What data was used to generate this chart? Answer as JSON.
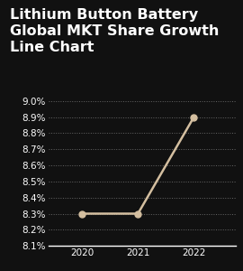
{
  "title_line1": "Lithium Button Battery",
  "title_line2": "Global MKT Share Growth",
  "title_line3": "Line Chart",
  "x": [
    2020,
    2021,
    2022
  ],
  "y": [
    8.3,
    8.3,
    8.9
  ],
  "ylim": [
    8.1,
    9.0
  ],
  "yticks": [
    8.1,
    8.2,
    8.3,
    8.4,
    8.5,
    8.6,
    8.7,
    8.8,
    8.9,
    9.0
  ],
  "xticks": [
    2020,
    2021,
    2022
  ],
  "line_color": "#d4bfa0",
  "marker_color": "#d4bfa0",
  "bg_color": "#111111",
  "text_color": "#ffffff",
  "grid_color": "#666666",
  "title_fontsize": 11.5,
  "tick_fontsize": 7.5,
  "line_width": 1.8,
  "marker_size": 5
}
